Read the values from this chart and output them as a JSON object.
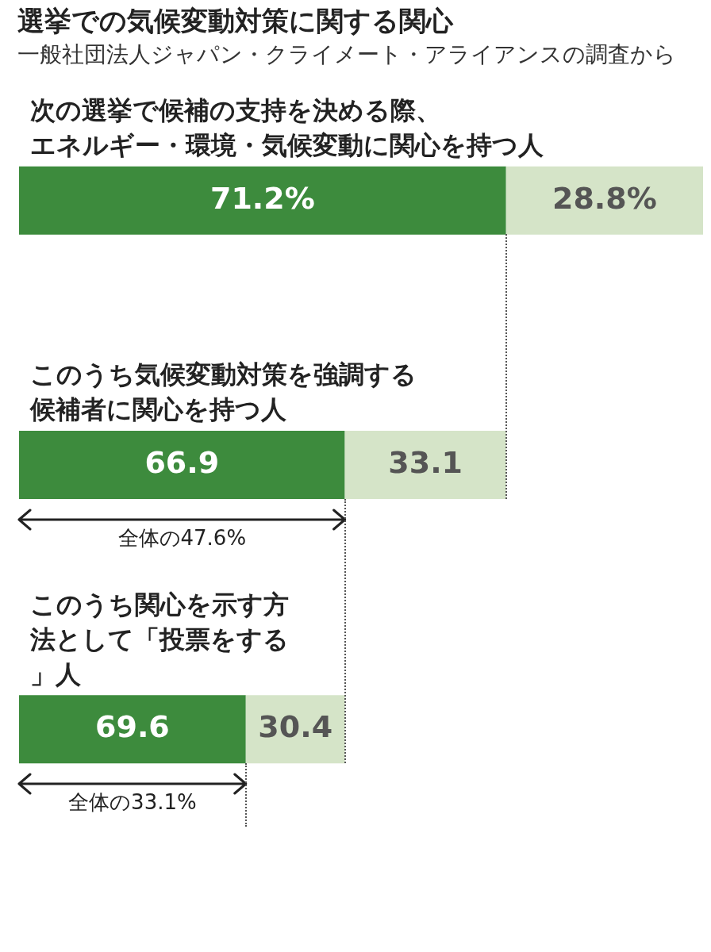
{
  "chart_data": {
    "type": "other",
    "title": "選挙での気候変動対策に関する関心",
    "subtitle": "一般社団法人ジャパン・クライメート・アライアンスの調査から",
    "categories": [
      "次の選挙で候補の支持を決める際、エネルギー・環境・気候変動に関心を持つ人",
      "このうち気候変動対策を強調する候補者に関心を持つ人",
      "このうち関心を示す方法として「投票をする」人"
    ],
    "series": [
      {
        "color": "#3d8b3d",
        "values": [
          71.2,
          66.9,
          69.6
        ],
        "value_labels": [
          "71.2%",
          "66.9",
          "69.6"
        ]
      },
      {
        "color": "#d5e4c8",
        "values": [
          28.8,
          33.1,
          30.4
        ],
        "value_labels": [
          "28.8%",
          "33.1",
          "30.4"
        ]
      }
    ],
    "annotations": [
      "全体の47.6%",
      "全体の33.1%"
    ],
    "legend": false
  }
}
